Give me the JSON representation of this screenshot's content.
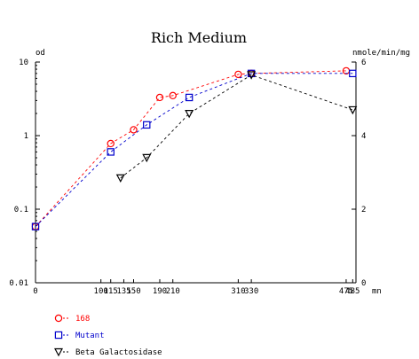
{
  "chart_data": {
    "type": "line",
    "title": "Rich Medium",
    "ylabel_left": "od",
    "ylabel_right": "nmole/min/mg",
    "x_unit": "mn",
    "x_ticks": [
      "0",
      "100",
      "115",
      "135",
      "150",
      "190",
      "210",
      "310",
      "330",
      "485",
      "475"
    ],
    "x_tick_values": [
      0,
      100,
      115,
      135,
      150,
      190,
      210,
      310,
      330,
      485,
      475
    ],
    "y_left_scale": "log",
    "y_left_ticks": [
      "0.01",
      "0.1",
      "1",
      "10"
    ],
    "y_left_tick_values": [
      0.01,
      0.1,
      1,
      10
    ],
    "ylim_left": [
      0.01,
      10
    ],
    "y_right_ticks": [
      "0",
      "2",
      "4",
      "6"
    ],
    "y_right_tick_values": [
      0,
      2,
      4,
      6
    ],
    "ylim_right": [
      0,
      6
    ],
    "xlim": [
      0,
      490
    ],
    "grid": false,
    "legend_position": "bottom-left",
    "series": [
      {
        "name": "168",
        "axis": "left",
        "marker": "circle",
        "color": "#ff0000",
        "x": [
          0,
          115,
          150,
          190,
          210,
          310,
          330,
          475
        ],
        "values": [
          0.058,
          0.78,
          1.2,
          3.3,
          3.5,
          6.8,
          7.0,
          7.6
        ]
      },
      {
        "name": "Mutant",
        "axis": "left",
        "marker": "square",
        "color": "#0000cc",
        "x": [
          0,
          115,
          170,
          235,
          330,
          485
        ],
        "values": [
          0.058,
          0.6,
          1.4,
          3.3,
          7.0,
          7.0
        ]
      },
      {
        "name": "Beta Galactosidase",
        "axis": "right",
        "marker": "triangle-down",
        "color": "#000000",
        "x": [
          130,
          170,
          235,
          330,
          485
        ],
        "values": [
          2.85,
          3.4,
          4.6,
          5.65,
          4.7
        ]
      }
    ]
  }
}
